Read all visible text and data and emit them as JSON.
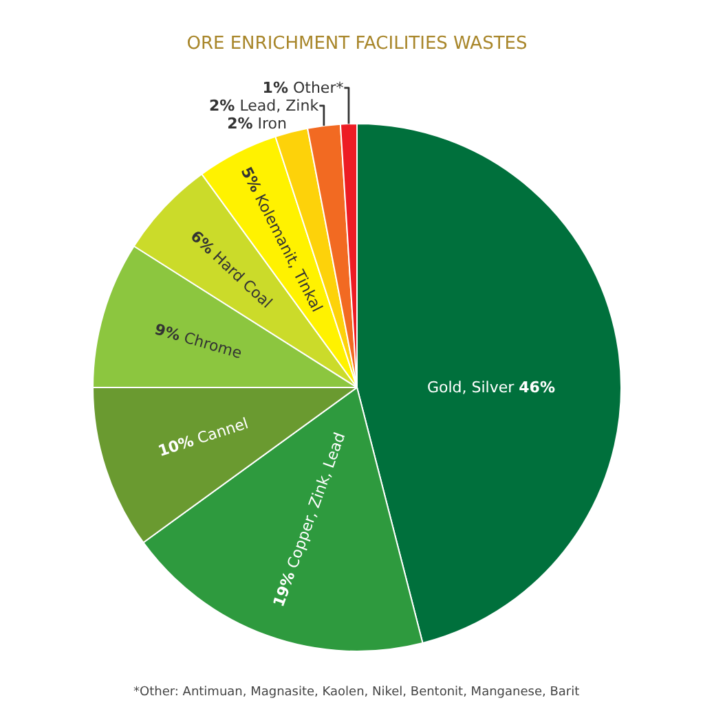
{
  "chart_data": {
    "type": "pie",
    "title": "ORE ENRICHMENT FACILITIES WASTES",
    "categories": [
      "Gold, Silver",
      "Copper, Zink, Lead",
      "Cannel",
      "Chrome",
      "Hard Coal",
      "Kolemanit, Tinkal",
      "Iron",
      "Lead, Zink",
      "Other*"
    ],
    "values": [
      46,
      19,
      10,
      9,
      6,
      5,
      2,
      2,
      1
    ],
    "value_labels": [
      "46%",
      "19%",
      "10%",
      "9%",
      "6%",
      "5%",
      "2%",
      "2%",
      "1%"
    ],
    "colors": [
      "#00703c",
      "#2e9a3e",
      "#6a9a30",
      "#8cc63f",
      "#cbdb2a",
      "#fff200",
      "#fdd20a",
      "#f26a22",
      "#ed1c24"
    ],
    "annotations": [
      "*Other: Antimuan, Magnasite, Kaolen, Nikel, Bentonit, Manganese, Barit"
    ]
  }
}
